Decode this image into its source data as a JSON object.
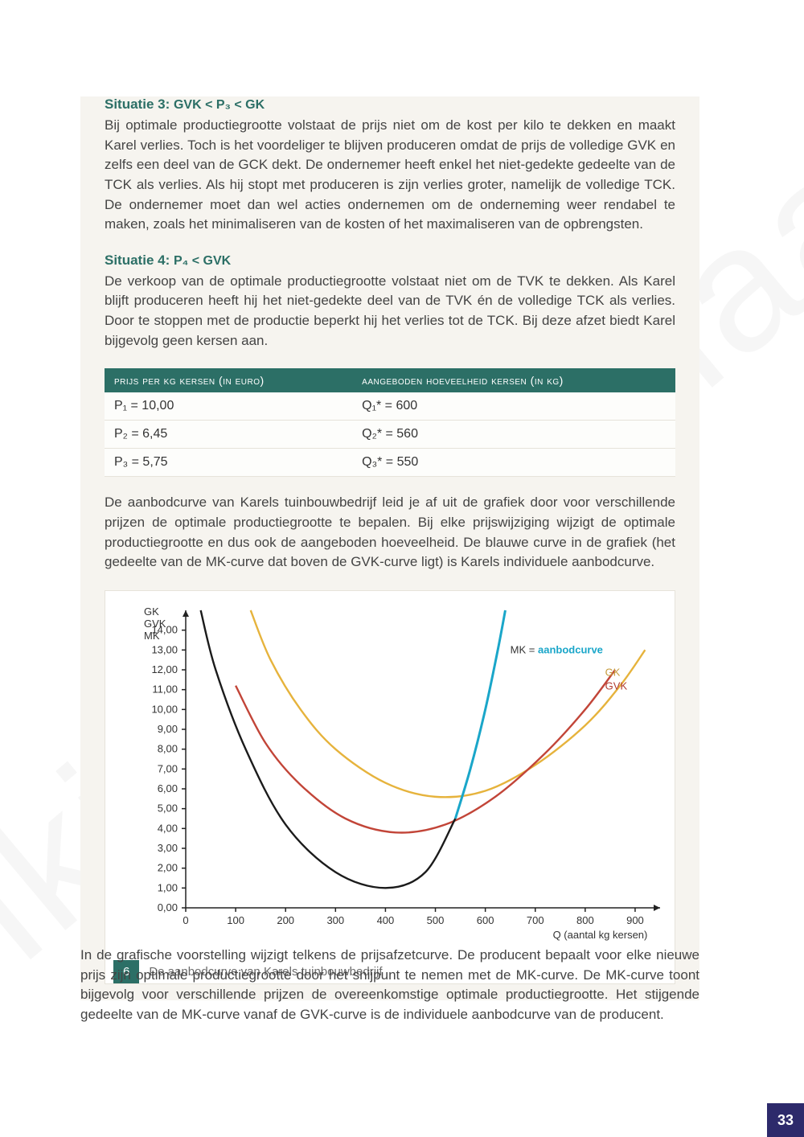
{
  "watermark": "Inkijkexemplaar",
  "page_number": "33",
  "section3": {
    "heading_prefix": "Situatie 3: ",
    "heading_formula": "GVK < P₃ < GK",
    "body": "Bij optimale productiegrootte volstaat de prijs niet om de kost per kilo te dekken en maakt Karel verlies. Toch is het voordeliger te blijven produceren omdat de prijs de volledige GVK en zelfs een deel van de GCK dekt. De ondernemer heeft enkel het niet-gedekte gedeelte van de TCK als verlies. Als hij stopt met produceren is zijn verlies groter, namelijk de volledige TCK. De ondernemer moet dan wel acties ondernemen om de onderneming weer rendabel te maken, zoals het minimaliseren van de kosten of het maximaliseren van de opbrengsten."
  },
  "section4": {
    "heading_prefix": "Situatie 4: ",
    "heading_formula": "P₄ < GVK",
    "body": "De verkoop van de optimale productiegrootte volstaat niet om de TVK te dekken. Als Karel blijft produceren heeft hij het niet-gedekte deel van de TVK én de volledige TCK als verlies. Door te stoppen met de productie beperkt hij het verlies tot de TCK. Bij deze afzet biedt Karel bijgevolg geen kersen aan."
  },
  "table": {
    "col1": "prijs per kg kersen (in euro)",
    "col2": "aangeboden hoeveelheid kersen (in kg)",
    "rows": [
      {
        "p": "P₁ = 10,00",
        "q": "Q₁* = 600"
      },
      {
        "p": "P₂ = 6,45",
        "q": "Q₂* = 560"
      },
      {
        "p": "P₃ = 5,75",
        "q": "Q₃* = 550"
      }
    ]
  },
  "after_table_body": "De aanbodcurve van Karels tuinbouwbedrijf leid je af uit de grafiek door voor verschillende prijzen de optimale productiegrootte te bepalen. Bij elke prijswijziging wijzigt de optimale productiegrootte en dus ook de aangeboden hoeveelheid. De blauwe curve in de grafiek (het gedeelte van de MK-curve dat boven de GVK-curve ligt) is Karels individuele aanbodcurve.",
  "chart": {
    "caption_num": "6",
    "caption_text": "De aanbodcurve van Karels tuinbouwbedrijf",
    "y_axis_labels_top": [
      "GK",
      "GVK",
      "MK"
    ],
    "y_ticks": [
      "14,00",
      "13,00",
      "12,00",
      "11,00",
      "10,00",
      "9,00",
      "8,00",
      "7,00",
      "6,00",
      "5,00",
      "4,00",
      "3,00",
      "2,00",
      "1,00",
      "0,00"
    ],
    "y_values": [
      14,
      13,
      12,
      11,
      10,
      9,
      8,
      7,
      6,
      5,
      4,
      3,
      2,
      1,
      0
    ],
    "x_ticks": [
      "0",
      "100",
      "200",
      "300",
      "400",
      "500",
      "600",
      "700",
      "800",
      "900"
    ],
    "x_values": [
      0,
      100,
      200,
      300,
      400,
      500,
      600,
      700,
      800,
      900
    ],
    "x_axis_title": "Q (aantal kg kersen)",
    "legend_mk": "MK = ",
    "legend_mk_em": "aanbodcurve",
    "legend_gk": "GK",
    "legend_gvk": "GVK",
    "colors": {
      "mk_black": "#1b1b1b",
      "mk_blue": "#1aa6c9",
      "gk": "#e6b33c",
      "gvk": "#c24538",
      "axis": "#222222",
      "legend_blue": "#1aa6c9",
      "legend_gk": "#c59a3a",
      "legend_gvk": "#b13d32"
    },
    "line_width": 2.4,
    "xlim": [
      0,
      950
    ],
    "ylim": [
      0,
      15
    ],
    "curves": {
      "mk": [
        [
          30,
          15
        ],
        [
          60,
          12
        ],
        [
          120,
          8
        ],
        [
          200,
          4.2
        ],
        [
          300,
          1.8
        ],
        [
          400,
          1.0
        ],
        [
          480,
          1.8
        ],
        [
          540,
          4.5
        ],
        [
          570,
          7.0
        ],
        [
          600,
          10.0
        ],
        [
          625,
          13.0
        ],
        [
          640,
          15.0
        ]
      ],
      "gk": [
        [
          130,
          15
        ],
        [
          170,
          12.5
        ],
        [
          230,
          10.0
        ],
        [
          300,
          8.0
        ],
        [
          400,
          6.3
        ],
        [
          500,
          5.6
        ],
        [
          600,
          5.9
        ],
        [
          700,
          7.2
        ],
        [
          800,
          9.2
        ],
        [
          870,
          11.2
        ],
        [
          920,
          13.0
        ]
      ],
      "gvk": [
        [
          100,
          11.2
        ],
        [
          160,
          8.3
        ],
        [
          230,
          6.2
        ],
        [
          320,
          4.5
        ],
        [
          420,
          3.8
        ],
        [
          520,
          4.2
        ],
        [
          620,
          5.6
        ],
        [
          720,
          7.8
        ],
        [
          800,
          10.0
        ],
        [
          860,
          12.0
        ]
      ]
    },
    "mk_blue_split_x": 540
  },
  "bottom_body": "In de grafische voorstelling wijzigt telkens de prijsafzetcurve. De producent bepaalt voor elke nieuwe prijs zijn optimale productiegrootte door het snijpunt te nemen met de MK-curve. De MK-curve toont bijgevolg voor verschillende prijzen de overeenkomstige optimale productiegrootte. Het stijgende gedeelte van de MK-curve vanaf de GVK-curve is de individuele aanbodcurve van de producent."
}
